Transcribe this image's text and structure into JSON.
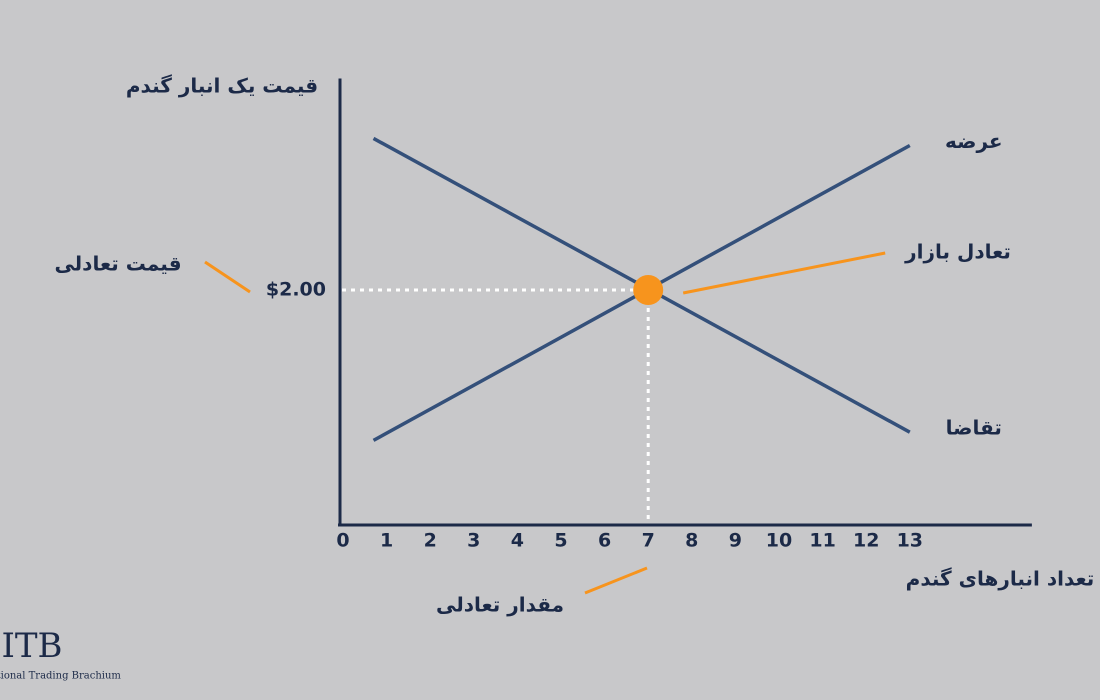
{
  "chart_data": {
    "type": "line",
    "y_label": "قیمت یک انبار گندم",
    "x_label": "تعداد انبارهای گندم",
    "xlim": [
      0,
      15.8
    ],
    "xticks": [
      0,
      1,
      2,
      3,
      4,
      5,
      6,
      7,
      8,
      9,
      10,
      11,
      12,
      13
    ],
    "ylim": [
      0,
      3.8
    ],
    "yticks": [
      {
        "value": 2,
        "label": "$2.00"
      }
    ],
    "series": [
      {
        "name": "عرضه",
        "color": "#34507a",
        "x": [
          0.7,
          13
        ],
        "values": [
          0.72,
          3.23
        ]
      },
      {
        "name": "تقاضا",
        "color": "#34507a",
        "x": [
          0.7,
          13
        ],
        "values": [
          3.29,
          0.79
        ]
      }
    ],
    "equilibrium": {
      "label": "تعادل بازار",
      "x": 7,
      "y": 2,
      "color": "#f7941d"
    },
    "annotations": {
      "price": "قیمت تعادلی",
      "quantity": "مقدار تعادلی"
    },
    "logo": {
      "mark": "ITB",
      "text": "International Trading Brachium"
    }
  }
}
